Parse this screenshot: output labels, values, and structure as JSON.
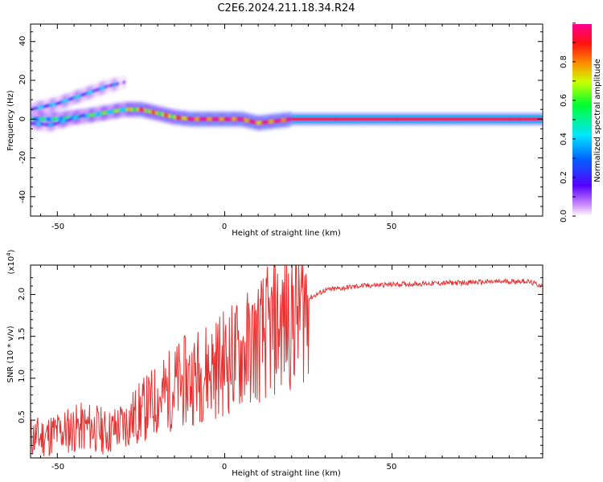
{
  "title": "C2E6.2024.211.18.34.R24",
  "top_panel": {
    "ylabel": "Frequency (Hz)",
    "xlabel": "Height of straight line (km)",
    "x_ticks": [
      "-50",
      "0",
      "50"
    ],
    "y_ticks": [
      "40",
      "20",
      "0",
      "-20",
      "-40"
    ]
  },
  "colorbar": {
    "label": "Normalized spectral amplitude",
    "ticks": [
      "0.0",
      "0.2",
      "0.4",
      "0.6",
      "0.8"
    ]
  },
  "bottom_panel": {
    "ylabel": "SNR (10 * v/v)",
    "multiplier": "(x10",
    "multiplier_exp": "4",
    "multiplier_close": ")",
    "xlabel": "Height of straight line (km)",
    "x_ticks": [
      "-50",
      "0",
      "50"
    ],
    "y_ticks": [
      "0.5",
      "1.0",
      "1.5",
      "2.0"
    ]
  },
  "chart_data": [
    {
      "type": "heatmap",
      "title": "C2E6.2024.211.18.34.R24",
      "xlabel": "Height of straight line (km)",
      "ylabel": "Frequency (Hz)",
      "xlim": [
        -58,
        95
      ],
      "ylim": [
        -50,
        49
      ],
      "colorbar_label": "Normalized spectral amplitude",
      "colorbar_range": [
        0,
        1
      ],
      "colormap": [
        "#ff00ff",
        "#0000ff",
        "#00ffff",
        "#00ff00",
        "#ffff00",
        "#ff0000",
        "#ff0080"
      ],
      "ridges": [
        {
          "x": [
            -58,
            -50,
            -40,
            -30,
            -25,
            -20,
            -15,
            -10,
            0,
            5,
            10,
            15,
            20,
            95
          ],
          "y": [
            0,
            0,
            2,
            5,
            5,
            3,
            1,
            0,
            0,
            0,
            -2,
            -1,
            0,
            0
          ],
          "amplitude": [
            0.4,
            0.45,
            0.5,
            0.55,
            0.8,
            0.7,
            0.75,
            0.9,
            0.9,
            0.9,
            0.85,
            0.9,
            0.95,
            0.95
          ]
        },
        {
          "x": [
            -58,
            -50,
            -45,
            -40,
            -35,
            -30
          ],
          "y": [
            5,
            8,
            11,
            14,
            17,
            19
          ],
          "amplitude": [
            0.3,
            0.3,
            0.35,
            0.3,
            0.25,
            0.15
          ]
        },
        {
          "x": [
            -58,
            -52,
            -48,
            -42
          ],
          "y": [
            -2,
            -3,
            -1,
            2
          ],
          "amplitude": [
            0.3,
            0.25,
            0.3,
            0.3
          ]
        }
      ]
    },
    {
      "type": "line",
      "xlabel": "Height of straight line (km)",
      "ylabel": "SNR (10 * v/v)",
      "y_multiplier": 10000,
      "xlim": [
        -58,
        95
      ],
      "ylim": [
        0.05,
        2.35
      ],
      "series": [
        {
          "color": "#e83030",
          "x": [
            -58,
            -55,
            -50,
            -45,
            -40,
            -35,
            -30,
            -25,
            -20,
            -15,
            -10,
            -5,
            0,
            5,
            10,
            15,
            20,
            25,
            30,
            40,
            50,
            60,
            70,
            80,
            90,
            95
          ],
          "y": [
            0.3,
            0.3,
            0.35,
            0.4,
            0.42,
            0.35,
            0.45,
            0.6,
            0.75,
            0.9,
            1.0,
            1.1,
            1.2,
            1.3,
            1.45,
            1.6,
            1.75,
            1.95,
            2.05,
            2.1,
            2.12,
            2.13,
            2.14,
            2.15,
            2.16,
            2.1
          ]
        }
      ]
    }
  ]
}
